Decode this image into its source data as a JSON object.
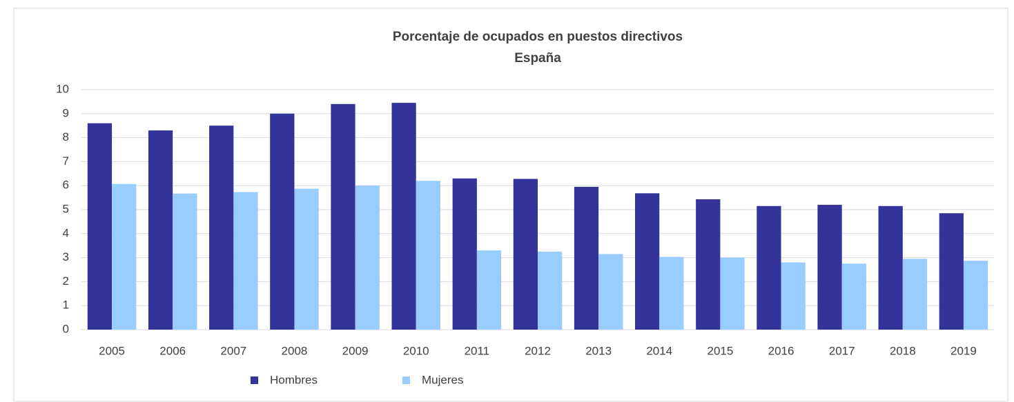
{
  "chart_data": {
    "type": "bar",
    "title": "Porcentaje de ocupados en puestos directivos",
    "subtitle": "España",
    "categories": [
      "2005",
      "2006",
      "2007",
      "2008",
      "2009",
      "2010",
      "2011",
      "2012",
      "2013",
      "2014",
      "2015",
      "2016",
      "2017",
      "2018",
      "2019"
    ],
    "series": [
      {
        "name": "Hombres",
        "color": "#333399",
        "values": [
          8.6,
          8.3,
          8.5,
          9.0,
          9.4,
          9.45,
          6.3,
          6.28,
          5.95,
          5.68,
          5.43,
          5.15,
          5.2,
          5.15,
          4.85
        ]
      },
      {
        "name": "Mujeres",
        "color": "#99ccff",
        "values": [
          6.07,
          5.67,
          5.73,
          5.87,
          6.0,
          6.2,
          3.3,
          3.25,
          3.15,
          3.03,
          3.0,
          2.8,
          2.75,
          2.95,
          2.87
        ]
      }
    ],
    "ylim": [
      0,
      10
    ],
    "yticks": [
      0,
      1,
      2,
      3,
      4,
      5,
      6,
      7,
      8,
      9,
      10
    ],
    "grid": true,
    "legend": "bottom"
  }
}
